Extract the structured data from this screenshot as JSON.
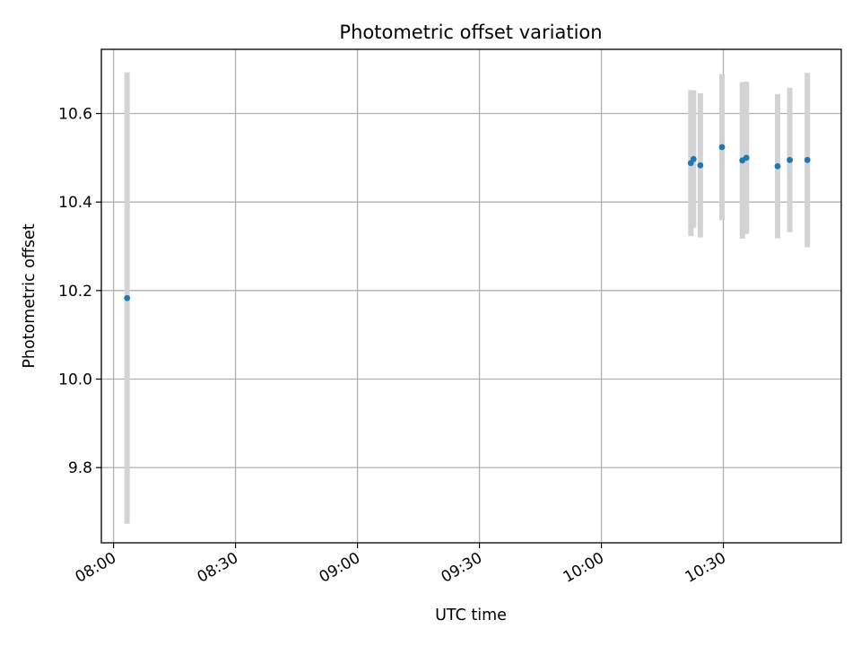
{
  "chart_data": {
    "type": "scatter",
    "title": "Photometric offset variation",
    "xlabel": "UTC time",
    "ylabel": "Photometric offset",
    "x_ticks": [
      "08:00",
      "08:30",
      "09:00",
      "09:30",
      "10:00",
      "10:30"
    ],
    "y_ticks": [
      "9.8",
      "10.0",
      "10.2",
      "10.4",
      "10.6"
    ],
    "xlim": [
      "07:57",
      "10:59"
    ],
    "ylim": [
      9.63,
      10.745
    ],
    "grid": true,
    "marker_color": "#1f77b4",
    "errorbar_color": "#d3d3d3",
    "points": [
      {
        "x": "08:03:20",
        "y": 10.183,
        "yerr": 0.51
      },
      {
        "x": "10:22:00",
        "y": 10.488,
        "yerr": 0.165
      },
      {
        "x": "10:22:40",
        "y": 10.497,
        "yerr": 0.155
      },
      {
        "x": "10:24:20",
        "y": 10.483,
        "yerr": 0.163
      },
      {
        "x": "10:29:40",
        "y": 10.524,
        "yerr": 0.165
      },
      {
        "x": "10:34:40",
        "y": 10.494,
        "yerr": 0.177
      },
      {
        "x": "10:35:40",
        "y": 10.5,
        "yerr": 0.172
      },
      {
        "x": "10:43:20",
        "y": 10.481,
        "yerr": 0.163
      },
      {
        "x": "10:46:20",
        "y": 10.495,
        "yerr": 0.163
      },
      {
        "x": "10:50:40",
        "y": 10.495,
        "yerr": 0.197
      }
    ]
  }
}
